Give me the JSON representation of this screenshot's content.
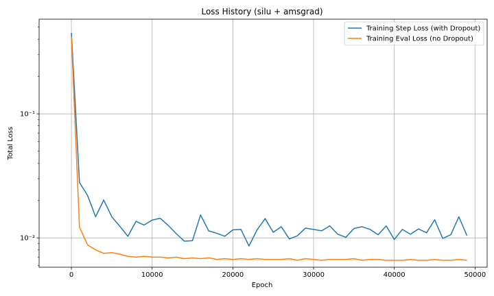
{
  "chart_data": {
    "type": "line",
    "title": "Loss History (silu + amsgrad)",
    "xlabel": "Epoch",
    "ylabel": "Total Loss",
    "yscale": "log",
    "xlim": [
      -4000,
      51500
    ],
    "ylim": [
      0.0058,
      0.58
    ],
    "grid": true,
    "legend_position": "top-right",
    "x_ticks": [
      0,
      10000,
      20000,
      30000,
      40000,
      50000
    ],
    "x_tick_labels": [
      "0",
      "10000",
      "20000",
      "30000",
      "40000",
      "50000"
    ],
    "y_major_ticks": [
      0.1,
      0.01
    ],
    "y_major_tick_labels": [
      "10⁻¹",
      "10⁻²"
    ],
    "y_minor_ticks": [
      0.006,
      0.007,
      0.008,
      0.009,
      0.02,
      0.03,
      0.04,
      0.05,
      0.06,
      0.07,
      0.08,
      0.09,
      0.2,
      0.3,
      0.4,
      0.5
    ],
    "x": [
      0,
      1000,
      2000,
      3000,
      4000,
      5000,
      6000,
      7000,
      8000,
      9000,
      10000,
      11000,
      12000,
      13000,
      14000,
      15000,
      16000,
      17000,
      18000,
      19000,
      20000,
      21000,
      22000,
      23000,
      24000,
      25000,
      26000,
      27000,
      28000,
      29000,
      30000,
      31000,
      32000,
      33000,
      34000,
      35000,
      36000,
      37000,
      38000,
      39000,
      40000,
      41000,
      42000,
      43000,
      44000,
      45000,
      46000,
      47000,
      48000,
      49000
    ],
    "series": [
      {
        "name": "Training Step Loss (with Dropout)",
        "color": "#1f77b4",
        "values": [
          0.45,
          0.028,
          0.022,
          0.0148,
          0.0202,
          0.0148,
          0.0124,
          0.0103,
          0.0136,
          0.0127,
          0.0139,
          0.0144,
          0.0126,
          0.0108,
          0.0094,
          0.0095,
          0.0153,
          0.0114,
          0.0109,
          0.0103,
          0.0116,
          0.0117,
          0.0086,
          0.0116,
          0.0143,
          0.0111,
          0.0123,
          0.0098,
          0.0104,
          0.012,
          0.0117,
          0.0114,
          0.0125,
          0.0107,
          0.0101,
          0.0119,
          0.0123,
          0.0117,
          0.0106,
          0.0125,
          0.0097,
          0.0117,
          0.0107,
          0.0118,
          0.011,
          0.014,
          0.0099,
          0.0106,
          0.0148,
          0.0104
        ]
      },
      {
        "name": "Training Eval Loss (no Dropout)",
        "color": "#ff7f0e",
        "values": [
          0.42,
          0.0122,
          0.0088,
          0.008,
          0.0075,
          0.0076,
          0.0074,
          0.0071,
          0.007,
          0.0071,
          0.007,
          0.007,
          0.0069,
          0.007,
          0.0068,
          0.0069,
          0.0068,
          0.0069,
          0.0067,
          0.0068,
          0.0067,
          0.0068,
          0.0067,
          0.0068,
          0.0067,
          0.0067,
          0.0067,
          0.0068,
          0.0066,
          0.0068,
          0.0067,
          0.0066,
          0.0067,
          0.0067,
          0.0067,
          0.0068,
          0.0066,
          0.0067,
          0.0067,
          0.0066,
          0.0066,
          0.0066,
          0.0067,
          0.0066,
          0.0066,
          0.0067,
          0.0066,
          0.0066,
          0.0067,
          0.0066
        ]
      }
    ]
  }
}
